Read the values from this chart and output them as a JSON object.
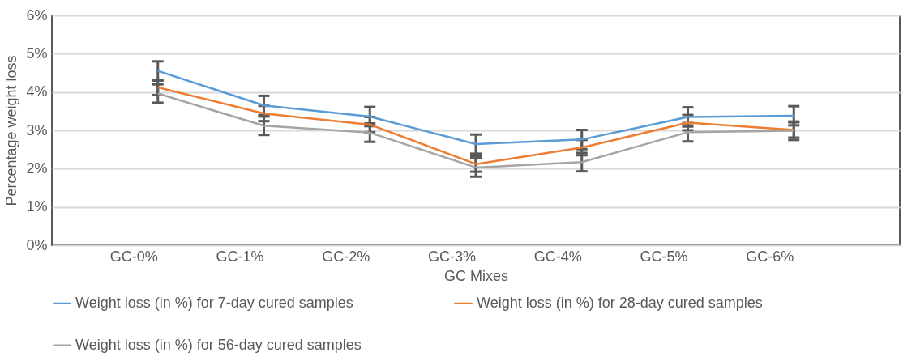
{
  "chart_data": {
    "type": "line",
    "xlabel": "GC Mixes",
    "ylabel": "Percentage  weight loss",
    "categories": [
      "GC-0%",
      "GC-1%",
      "GC-2%",
      "GC-3%",
      "GC-4%",
      "GC-5%",
      "GC-6%"
    ],
    "series": [
      {
        "name": "Weight loss (in %) for 7-day cured samples",
        "color": "#5b9bd5",
        "values": [
          4.55,
          3.65,
          3.36,
          2.64,
          2.76,
          3.35,
          3.38
        ],
        "errors": [
          0.25,
          0.25,
          0.25,
          0.25,
          0.25,
          0.25,
          0.25
        ]
      },
      {
        "name": "Weight loss (in %) for 28-day cured samples",
        "color": "#ed7d31",
        "values": [
          4.12,
          3.44,
          3.15,
          2.12,
          2.55,
          3.2,
          3.01
        ],
        "errors": [
          0.2,
          0.2,
          0.2,
          0.2,
          0.2,
          0.2,
          0.2
        ]
      },
      {
        "name": "Weight loss (in %) for 56-day cured samples",
        "color": "#a5a5a5",
        "values": [
          3.96,
          3.12,
          2.94,
          2.03,
          2.17,
          2.95,
          2.99
        ],
        "errors": [
          0.24,
          0.24,
          0.24,
          0.24,
          0.24,
          0.24,
          0.24
        ]
      }
    ],
    "ylim": [
      0,
      6
    ],
    "yticks": [
      {
        "value": 0,
        "label": "0%"
      },
      {
        "value": 1,
        "label": "1%"
      },
      {
        "value": 2,
        "label": "2%"
      },
      {
        "value": 3,
        "label": "3%"
      },
      {
        "value": 4,
        "label": "4%"
      },
      {
        "value": 5,
        "label": "5%"
      },
      {
        "value": 6,
        "label": "6%"
      }
    ],
    "grid": "y",
    "legend": "bottom",
    "marker": "none",
    "line_style": "solid"
  }
}
